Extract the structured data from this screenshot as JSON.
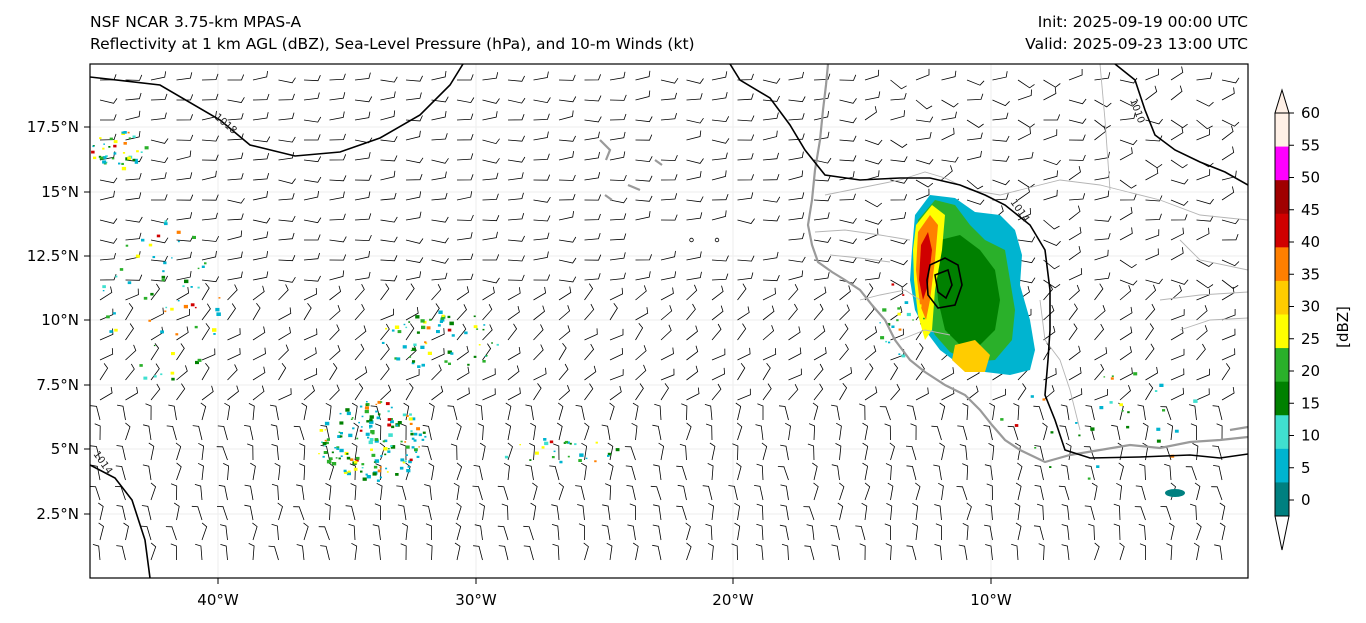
{
  "title": {
    "left_line1": "NSF NCAR 3.75-km MPAS-A",
    "left_line2": "Reflectivity at 1 km AGL (dBZ), Sea-Level Pressure (hPa), and 10-m Winds (kt)",
    "right_line1": "Init: 2025-09-19 00:00 UTC",
    "right_line2": "Valid: 2025-09-23 13:00 UTC"
  },
  "axes": {
    "lon_labels": [
      "40°W",
      "30°W",
      "20°W",
      "10°W"
    ],
    "lat_labels": [
      "17.5°N",
      "15°N",
      "12.5°N",
      "10°N",
      "7.5°N",
      "5°N",
      "2.5°N"
    ]
  },
  "isobar_labels": [
    "1018",
    "1014",
    "1010",
    "1014"
  ],
  "colorbar": {
    "unit_label": "[dBZ]",
    "ticks": [
      "60",
      "55",
      "50",
      "45",
      "40",
      "35",
      "30",
      "25",
      "20",
      "15",
      "10",
      "5",
      "0"
    ],
    "colors": [
      "#fff0e6",
      "#ff00ff",
      "#a00000",
      "#d00000",
      "#ff7f00",
      "#ffcc00",
      "#ffff00",
      "#2ab02a",
      "#008000",
      "#40e0d0",
      "#00b4d0",
      "#008080",
      "#ffffff"
    ]
  },
  "legend_colors": {
    "coast": "#9a9a9a",
    "isobar": "#000000"
  }
}
